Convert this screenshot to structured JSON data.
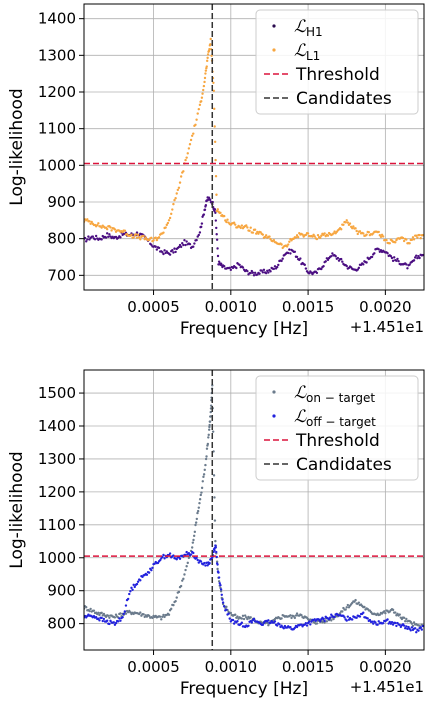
{
  "chart_data": [
    {
      "type": "scatter",
      "xlabel": "Frequency [Hz]",
      "ylabel": "Log-likelihood",
      "x_offset_label": "+1.451e1",
      "xlim": [
        5e-05,
        0.00225
      ],
      "ylim": [
        660,
        1440
      ],
      "xticks": [
        0.0005,
        0.001,
        0.0015,
        0.002
      ],
      "xtick_labels": [
        "0.0005",
        "0.0010",
        "0.0015",
        "0.0020"
      ],
      "yticks": [
        700,
        800,
        900,
        1000,
        1100,
        1200,
        1300,
        1400
      ],
      "grid": true,
      "legend_position": "top-right",
      "threshold": 1005,
      "candidate_x": 0.00088,
      "legend": [
        {
          "kind": "dot",
          "symbol": "ℒ",
          "sub": "H1",
          "color": "#2a0a4e"
        },
        {
          "kind": "dot",
          "symbol": "ℒ",
          "sub": "L1",
          "color": "#f7a640"
        },
        {
          "kind": "line",
          "label": "Threshold",
          "color": "#dc143c"
        },
        {
          "kind": "line",
          "label": "Candidates",
          "color": "#333333"
        }
      ],
      "series": [
        {
          "name": "H1",
          "color": "#4b0f82",
          "points": [
            [
              5e-05,
              795
            ],
            [
              0.0001,
              805
            ],
            [
              0.00015,
              800
            ],
            [
              0.0002,
              810
            ],
            [
              0.00025,
              802
            ],
            [
              0.0003,
              812
            ],
            [
              0.00035,
              810
            ],
            [
              0.0004,
              815
            ],
            [
              0.00045,
              800
            ],
            [
              0.0005,
              780
            ],
            [
              0.00055,
              765
            ],
            [
              0.0006,
              760
            ],
            [
              0.00065,
              770
            ],
            [
              0.0007,
              790
            ],
            [
              0.00075,
              778
            ],
            [
              0.0008,
              820
            ],
            [
              0.00083,
              880
            ],
            [
              0.00085,
              910
            ],
            [
              0.00088,
              900
            ],
            [
              0.0009,
              870
            ],
            [
              0.00092,
              735
            ],
            [
              0.00095,
              722
            ],
            [
              0.001,
              715
            ],
            [
              0.00105,
              730
            ],
            [
              0.0011,
              710
            ],
            [
              0.00115,
              705
            ],
            [
              0.0012,
              708
            ],
            [
              0.00125,
              712
            ],
            [
              0.0013,
              725
            ],
            [
              0.00135,
              760
            ],
            [
              0.0014,
              768
            ],
            [
              0.00145,
              740
            ],
            [
              0.0015,
              710
            ],
            [
              0.00155,
              705
            ],
            [
              0.0016,
              730
            ],
            [
              0.00165,
              757
            ],
            [
              0.0017,
              745
            ],
            [
              0.00175,
              725
            ],
            [
              0.0018,
              715
            ],
            [
              0.00185,
              728
            ],
            [
              0.0019,
              750
            ],
            [
              0.00195,
              772
            ],
            [
              0.002,
              766
            ],
            [
              0.00205,
              745
            ],
            [
              0.0021,
              735
            ],
            [
              0.00215,
              722
            ],
            [
              0.0022,
              748
            ],
            [
              0.00225,
              760
            ]
          ]
        },
        {
          "name": "L1",
          "color": "#f7a640",
          "points": [
            [
              5e-05,
              850
            ],
            [
              0.0001,
              845
            ],
            [
              0.00015,
              835
            ],
            [
              0.0002,
              830
            ],
            [
              0.00025,
              825
            ],
            [
              0.0003,
              820
            ],
            [
              0.00035,
              810
            ],
            [
              0.0004,
              805
            ],
            [
              0.00045,
              800
            ],
            [
              0.0005,
              795
            ],
            [
              0.00055,
              810
            ],
            [
              0.0006,
              850
            ],
            [
              0.00065,
              920
            ],
            [
              0.0007,
              1000
            ],
            [
              0.00075,
              1080
            ],
            [
              0.0008,
              1160
            ],
            [
              0.00083,
              1230
            ],
            [
              0.00085,
              1290
            ],
            [
              0.00087,
              1340
            ],
            [
              0.00089,
              1200
            ],
            [
              0.00091,
              880
            ],
            [
              0.00095,
              860
            ],
            [
              0.001,
              840
            ],
            [
              0.00105,
              835
            ],
            [
              0.0011,
              830
            ],
            [
              0.00115,
              820
            ],
            [
              0.0012,
              810
            ],
            [
              0.00125,
              800
            ],
            [
              0.0013,
              790
            ],
            [
              0.00135,
              775
            ],
            [
              0.0014,
              800
            ],
            [
              0.00145,
              812
            ],
            [
              0.0015,
              810
            ],
            [
              0.00155,
              803
            ],
            [
              0.0016,
              812
            ],
            [
              0.00165,
              810
            ],
            [
              0.0017,
              825
            ],
            [
              0.00175,
              845
            ],
            [
              0.0018,
              825
            ],
            [
              0.00185,
              810
            ],
            [
              0.0019,
              815
            ],
            [
              0.00195,
              818
            ],
            [
              0.002,
              795
            ],
            [
              0.00205,
              790
            ],
            [
              0.0021,
              800
            ],
            [
              0.00215,
              790
            ],
            [
              0.0022,
              807
            ],
            [
              0.00225,
              806
            ]
          ]
        }
      ]
    },
    {
      "type": "scatter",
      "xlabel": "Frequency [Hz]",
      "ylabel": "Log-likelihood",
      "x_offset_label": "+1.451e1",
      "xlim": [
        5e-05,
        0.00225
      ],
      "ylim": [
        720,
        1570
      ],
      "xticks": [
        0.0005,
        0.001,
        0.0015,
        0.002
      ],
      "xtick_labels": [
        "0.0005",
        "0.0010",
        "0.0015",
        "0.0020"
      ],
      "yticks": [
        800,
        900,
        1000,
        1100,
        1200,
        1300,
        1400,
        1500
      ],
      "grid": true,
      "legend_position": "top-right",
      "threshold": 1005,
      "candidate_x": 0.00088,
      "legend": [
        {
          "kind": "dot",
          "symbol": "ℒ",
          "sub": "on − target",
          "color": "#6b7b8c"
        },
        {
          "kind": "dot",
          "symbol": "ℒ",
          "sub": "off − target",
          "color": "#2222dd"
        },
        {
          "kind": "line",
          "label": "Threshold",
          "color": "#dc143c"
        },
        {
          "kind": "line",
          "label": "Candidates",
          "color": "#333333"
        }
      ],
      "series": [
        {
          "name": "on-target",
          "color": "#6b7b8c",
          "points": [
            [
              5e-05,
              850
            ],
            [
              0.0001,
              840
            ],
            [
              0.00015,
              830
            ],
            [
              0.0002,
              825
            ],
            [
              0.00025,
              820
            ],
            [
              0.0003,
              830
            ],
            [
              0.00035,
              835
            ],
            [
              0.0004,
              832
            ],
            [
              0.00045,
              825
            ],
            [
              0.0005,
              820
            ],
            [
              0.00055,
              818
            ],
            [
              0.0006,
              830
            ],
            [
              0.00065,
              880
            ],
            [
              0.0007,
              950
            ],
            [
              0.00075,
              1030
            ],
            [
              0.00078,
              1120
            ],
            [
              0.00081,
              1200
            ],
            [
              0.00084,
              1300
            ],
            [
              0.00086,
              1390
            ],
            [
              0.00087,
              1440
            ],
            [
              0.00088,
              1520
            ],
            [
              0.0009,
              1050
            ],
            [
              0.00092,
              940
            ],
            [
              0.00095,
              860
            ],
            [
              0.001,
              830
            ],
            [
              0.00105,
              815
            ],
            [
              0.0011,
              820
            ],
            [
              0.00115,
              812
            ],
            [
              0.0012,
              800
            ],
            [
              0.00125,
              800
            ],
            [
              0.0013,
              815
            ],
            [
              0.00135,
              825
            ],
            [
              0.0014,
              820
            ],
            [
              0.00145,
              830
            ],
            [
              0.0015,
              812
            ],
            [
              0.00155,
              805
            ],
            [
              0.0016,
              808
            ],
            [
              0.00165,
              815
            ],
            [
              0.0017,
              830
            ],
            [
              0.00175,
              850
            ],
            [
              0.0018,
              868
            ],
            [
              0.00185,
              855
            ],
            [
              0.0019,
              835
            ],
            [
              0.00195,
              830
            ],
            [
              0.002,
              835
            ],
            [
              0.00205,
              840
            ],
            [
              0.0021,
              820
            ],
            [
              0.00215,
              805
            ],
            [
              0.0022,
              795
            ],
            [
              0.00225,
              790
            ]
          ]
        },
        {
          "name": "off-target",
          "color": "#2222dd",
          "points": [
            [
              5e-05,
              820
            ],
            [
              0.0001,
              825
            ],
            [
              0.00015,
              815
            ],
            [
              0.0002,
              805
            ],
            [
              0.00025,
              800
            ],
            [
              0.0003,
              820
            ],
            [
              0.00035,
              900
            ],
            [
              0.0004,
              930
            ],
            [
              0.00045,
              950
            ],
            [
              0.0005,
              975
            ],
            [
              0.00055,
              1000
            ],
            [
              0.0006,
              1010
            ],
            [
              0.00065,
              995
            ],
            [
              0.0007,
              1010
            ],
            [
              0.00075,
              1015
            ],
            [
              0.0008,
              985
            ],
            [
              0.00085,
              980
            ],
            [
              0.00088,
              1000
            ],
            [
              0.0009,
              1040
            ],
            [
              0.00092,
              950
            ],
            [
              0.00095,
              860
            ],
            [
              0.001,
              810
            ],
            [
              0.00105,
              800
            ],
            [
              0.0011,
              795
            ],
            [
              0.00115,
              810
            ],
            [
              0.0012,
              800
            ],
            [
              0.00125,
              805
            ],
            [
              0.0013,
              800
            ],
            [
              0.00135,
              790
            ],
            [
              0.0014,
              785
            ],
            [
              0.00145,
              795
            ],
            [
              0.0015,
              800
            ],
            [
              0.00155,
              810
            ],
            [
              0.0016,
              812
            ],
            [
              0.00165,
              822
            ],
            [
              0.0017,
              825
            ],
            [
              0.00175,
              815
            ],
            [
              0.0018,
              820
            ],
            [
              0.00185,
              830
            ],
            [
              0.0019,
              810
            ],
            [
              0.00195,
              800
            ],
            [
              0.002,
              810
            ],
            [
              0.00205,
              800
            ],
            [
              0.0021,
              795
            ],
            [
              0.00215,
              785
            ],
            [
              0.0022,
              780
            ],
            [
              0.00225,
              790
            ]
          ]
        }
      ]
    }
  ]
}
